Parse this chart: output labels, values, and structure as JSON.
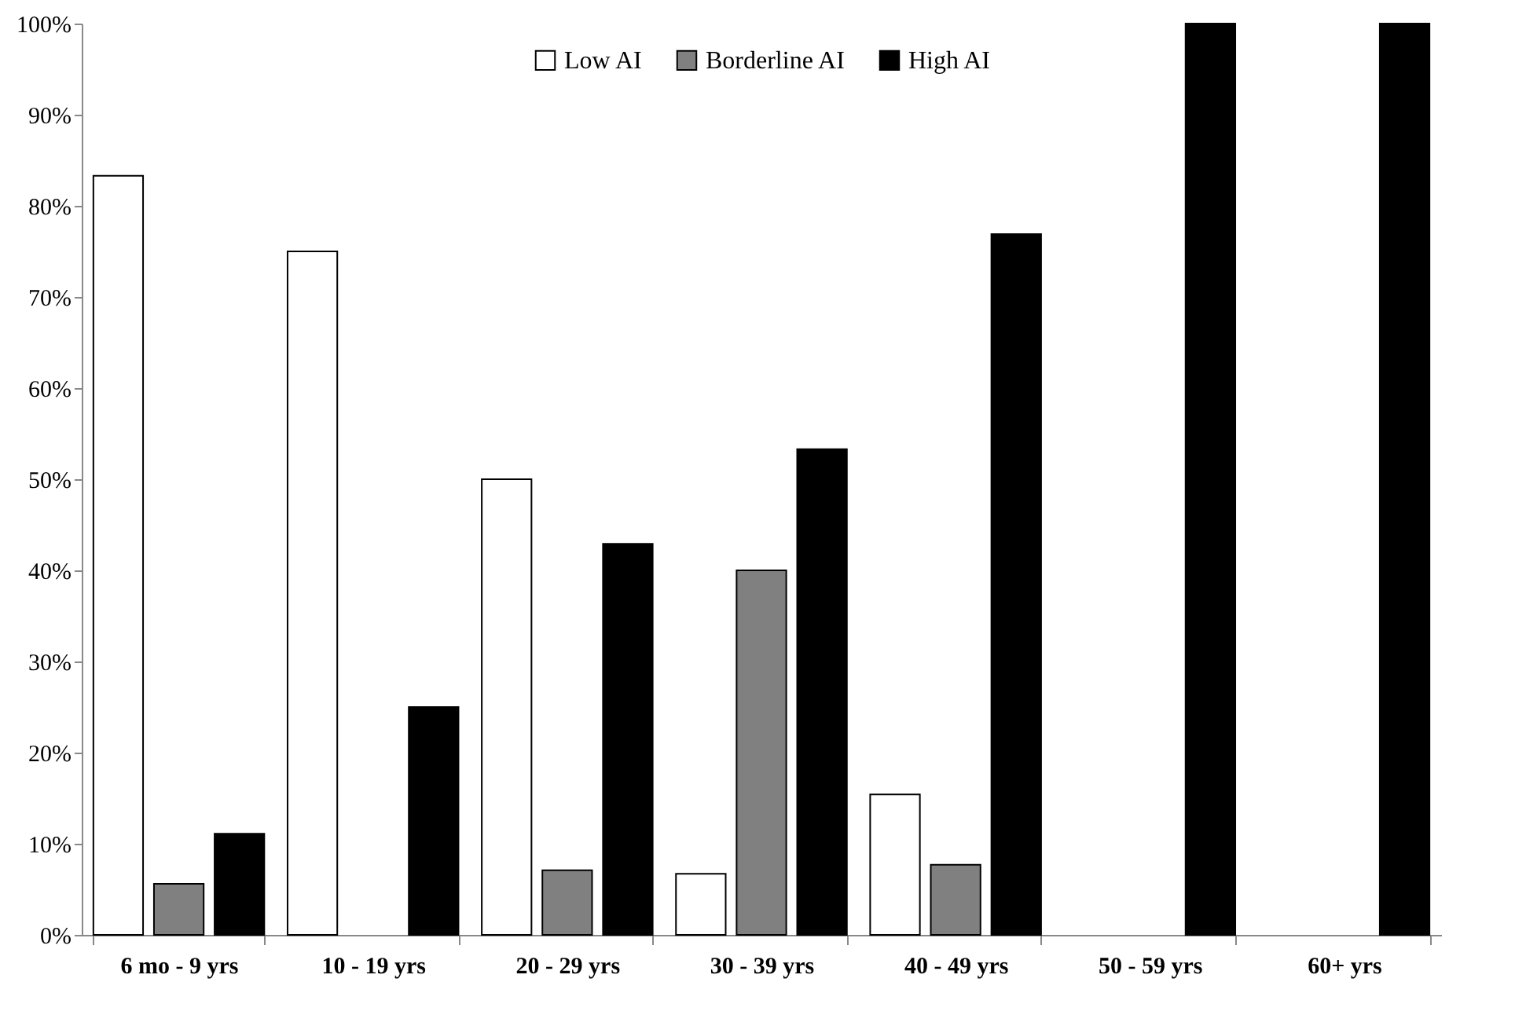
{
  "chart_data": {
    "type": "bar",
    "categories": [
      "6 mo - 9 yrs",
      "10 - 19 yrs",
      "20 - 29 yrs",
      "30 - 39 yrs",
      "40 - 49 yrs",
      "50 - 59 yrs",
      "60+ yrs"
    ],
    "series": [
      {
        "name": "Low AI",
        "color": "#ffffff",
        "values": [
          83.3,
          75,
          50,
          6.7,
          15.4,
          0,
          0
        ]
      },
      {
        "name": "Borderline AI",
        "color": "#808080",
        "values": [
          5.6,
          0,
          7.1,
          40,
          7.7,
          0,
          0
        ]
      },
      {
        "name": "High AI",
        "color": "#000000",
        "values": [
          11.1,
          25,
          42.9,
          53.3,
          76.9,
          100,
          100
        ]
      }
    ],
    "ylim": [
      0,
      100
    ],
    "yticks": [
      {
        "value": 0,
        "label": "0%"
      },
      {
        "value": 10,
        "label": "10%"
      },
      {
        "value": 20,
        "label": "20%"
      },
      {
        "value": 30,
        "label": "30%"
      },
      {
        "value": 40,
        "label": "40%"
      },
      {
        "value": 50,
        "label": "50%"
      },
      {
        "value": 60,
        "label": "60%"
      },
      {
        "value": 70,
        "label": "70%"
      },
      {
        "value": 80,
        "label": "80%"
      },
      {
        "value": 90,
        "label": "90%"
      },
      {
        "value": 100,
        "label": "100%"
      }
    ],
    "legend": "top",
    "grid": false
  }
}
